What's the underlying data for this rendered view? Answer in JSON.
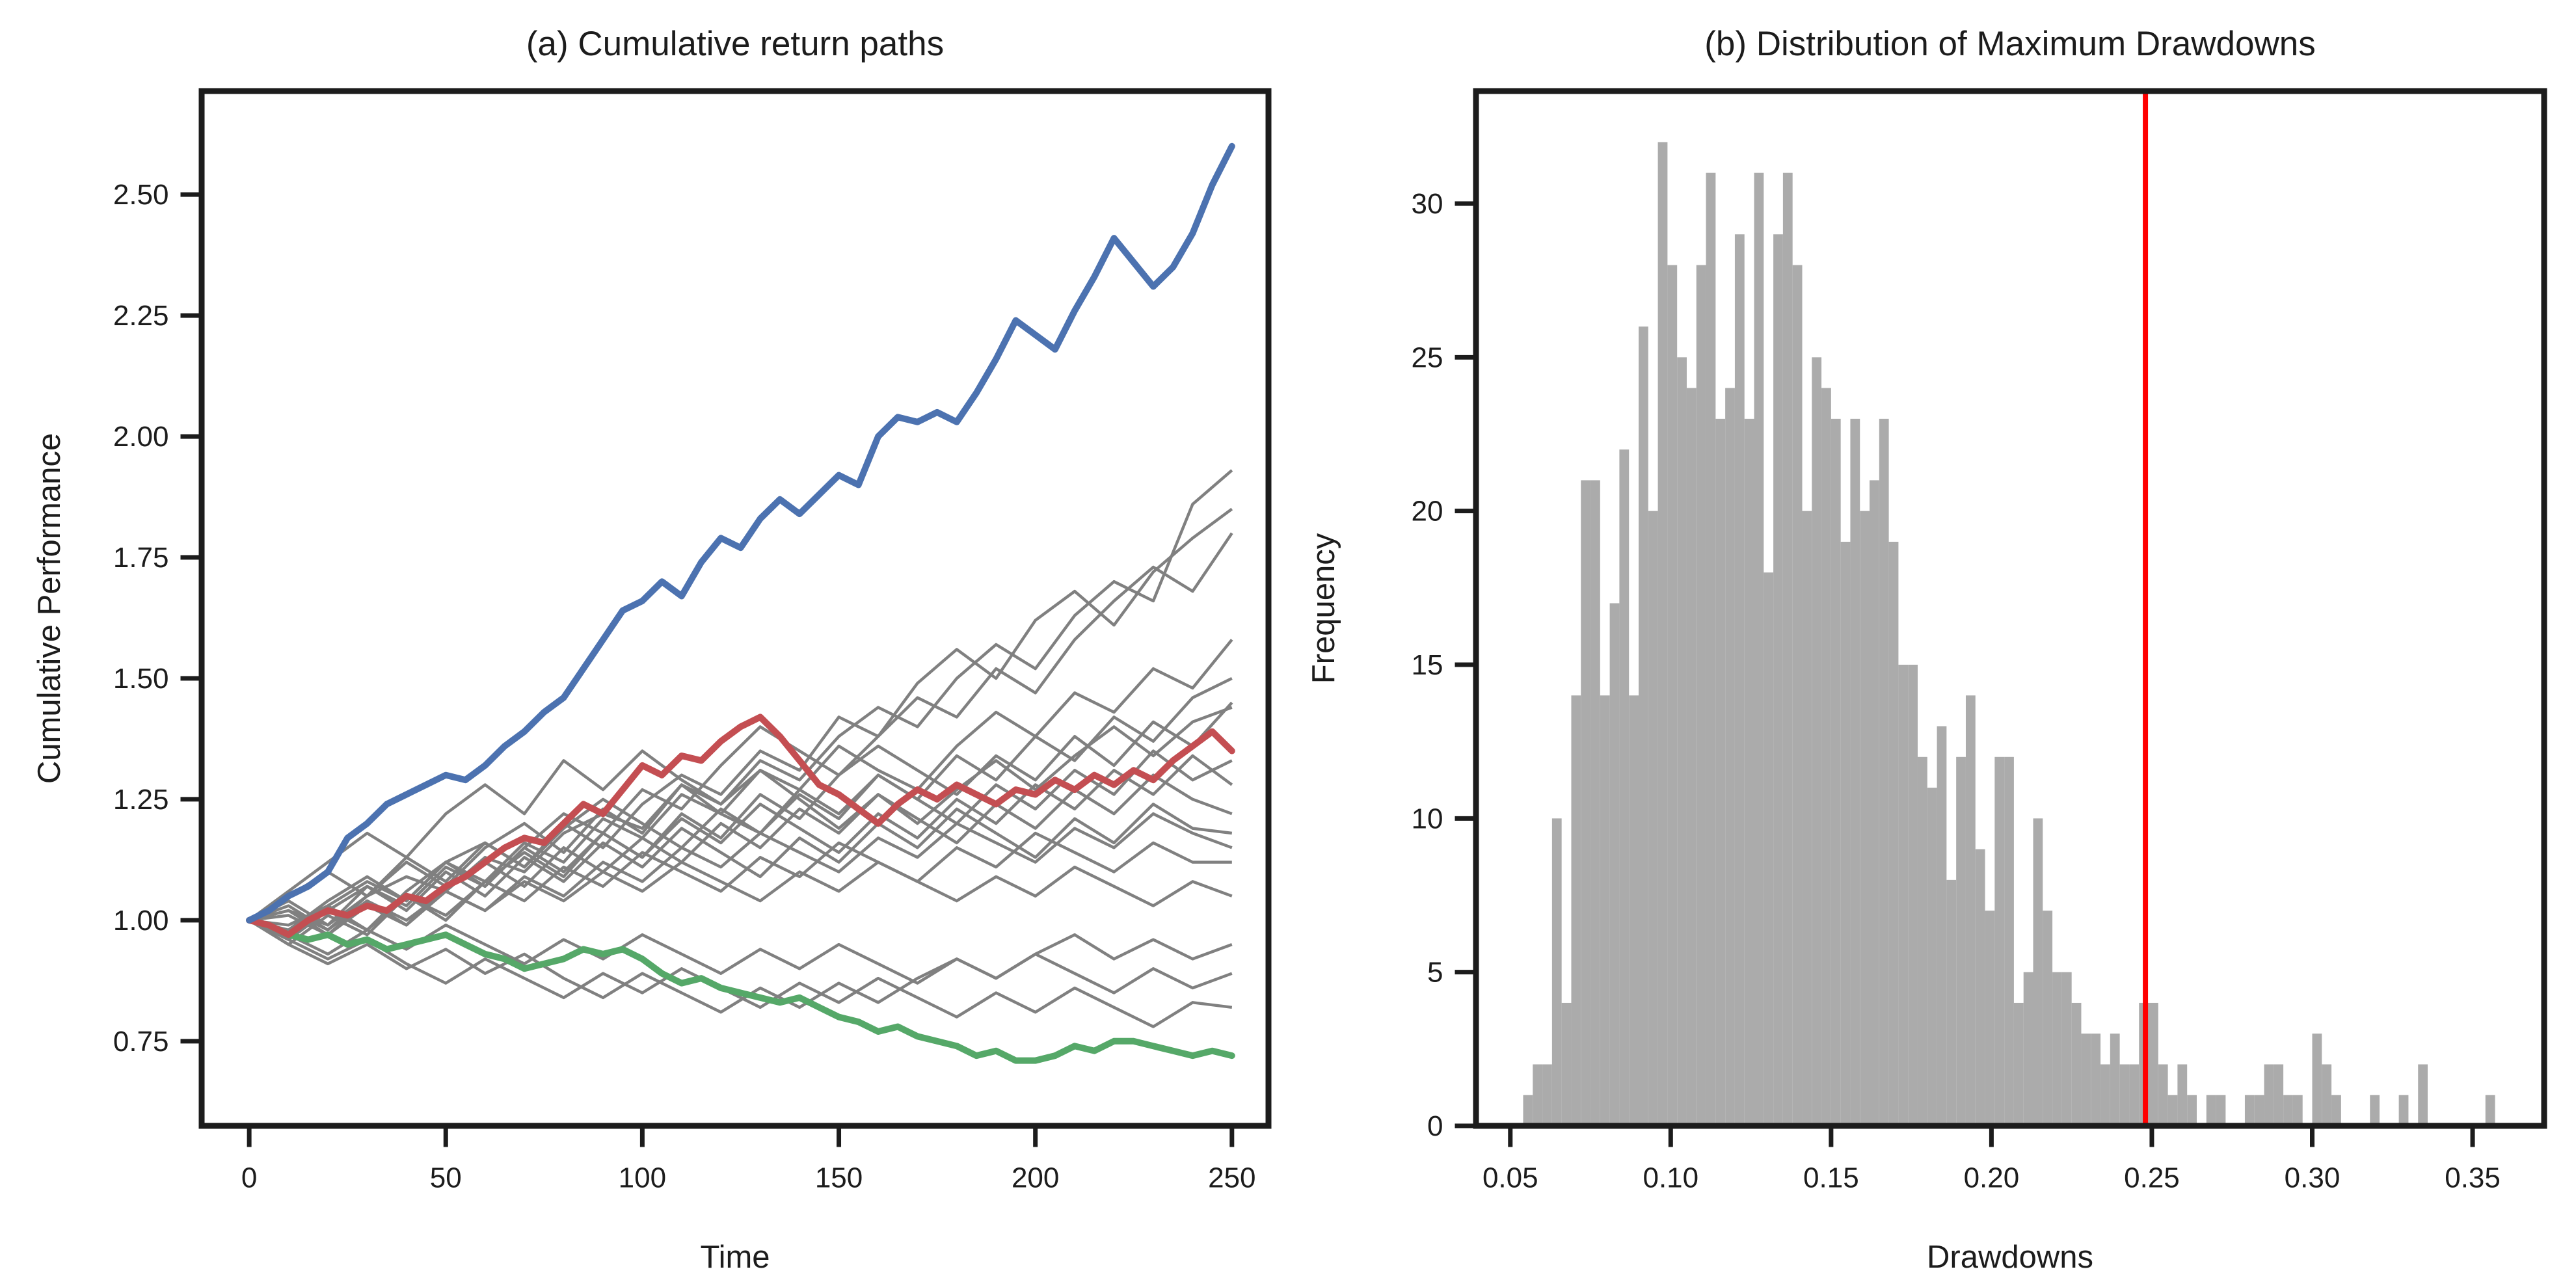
{
  "figure": {
    "background": "#ffffff",
    "axis_color": "#1c1c1c",
    "text_color": "#1c1c1c"
  },
  "chart_data": [
    {
      "type": "line",
      "title": "(a) Cumulative return paths",
      "xlabel": "Time",
      "ylabel": "Cumulative Performance",
      "xlim": [
        -12.1,
        259.3
      ],
      "ylim": [
        0.575,
        2.714
      ],
      "grid": "off",
      "legend": "none",
      "xticks": {
        "values": [
          0,
          50,
          100,
          150,
          200,
          250
        ],
        "labels": [
          "0",
          "50",
          "100",
          "150",
          "200",
          "250"
        ]
      },
      "yticks": {
        "values": [
          0.75,
          1.0,
          1.25,
          1.5,
          1.75,
          2.0,
          2.25,
          2.5
        ],
        "labels": [
          "0.75",
          "1.00",
          "1.25",
          "1.50",
          "1.75",
          "2.00",
          "2.25",
          "2.50"
        ]
      },
      "highlight_series": [
        {
          "name": "best-path",
          "color": "#4C72B0",
          "t0": 0,
          "t_step": 5,
          "values": [
            1.0,
            1.02,
            1.05,
            1.07,
            1.1,
            1.17,
            1.2,
            1.24,
            1.26,
            1.28,
            1.3,
            1.29,
            1.32,
            1.36,
            1.39,
            1.43,
            1.46,
            1.52,
            1.58,
            1.64,
            1.66,
            1.7,
            1.67,
            1.74,
            1.79,
            1.77,
            1.83,
            1.87,
            1.84,
            1.88,
            1.92,
            1.9,
            2.0,
            2.04,
            2.03,
            2.05,
            2.03,
            2.09,
            2.16,
            2.24,
            2.21,
            2.18,
            2.26,
            2.33,
            2.41,
            2.36,
            2.31,
            2.35,
            2.42,
            2.52,
            2.6
          ]
        },
        {
          "name": "median-path",
          "color": "#C44E52",
          "t0": 0,
          "t_step": 5,
          "values": [
            1.0,
            0.99,
            0.97,
            1.0,
            1.02,
            1.01,
            1.03,
            1.02,
            1.05,
            1.04,
            1.07,
            1.09,
            1.12,
            1.15,
            1.17,
            1.16,
            1.2,
            1.24,
            1.22,
            1.27,
            1.32,
            1.3,
            1.34,
            1.33,
            1.37,
            1.4,
            1.42,
            1.38,
            1.33,
            1.28,
            1.26,
            1.23,
            1.2,
            1.24,
            1.27,
            1.25,
            1.28,
            1.26,
            1.24,
            1.27,
            1.26,
            1.29,
            1.27,
            1.3,
            1.28,
            1.31,
            1.29,
            1.33,
            1.36,
            1.39,
            1.35
          ]
        },
        {
          "name": "worst-path",
          "color": "#55A868",
          "t0": 0,
          "t_step": 5,
          "values": [
            1.0,
            0.99,
            0.97,
            0.96,
            0.97,
            0.95,
            0.96,
            0.94,
            0.95,
            0.96,
            0.97,
            0.95,
            0.93,
            0.92,
            0.9,
            0.91,
            0.92,
            0.94,
            0.93,
            0.94,
            0.92,
            0.89,
            0.87,
            0.88,
            0.86,
            0.85,
            0.84,
            0.83,
            0.84,
            0.82,
            0.8,
            0.79,
            0.77,
            0.78,
            0.76,
            0.75,
            0.74,
            0.72,
            0.73,
            0.71,
            0.71,
            0.72,
            0.74,
            0.73,
            0.75,
            0.75,
            0.74,
            0.73,
            0.72,
            0.73,
            0.72
          ]
        }
      ],
      "background_series": {
        "name": "sample-paths",
        "color": "#808080",
        "t0": 0,
        "t_step": 10,
        "paths": [
          [
            1.0,
            1.02,
            0.99,
            1.05,
            1.09,
            1.06,
            1.13,
            1.1,
            1.18,
            1.22,
            1.19,
            1.28,
            1.24,
            1.33,
            1.29,
            1.38,
            1.44,
            1.4,
            1.5,
            1.57,
            1.52,
            1.63,
            1.7,
            1.66,
            1.86,
            1.93
          ],
          [
            1.0,
            0.97,
            1.03,
            1.08,
            1.04,
            1.12,
            1.16,
            1.11,
            1.2,
            1.15,
            1.24,
            1.3,
            1.26,
            1.35,
            1.31,
            1.42,
            1.38,
            1.49,
            1.56,
            1.5,
            1.62,
            1.68,
            1.61,
            1.72,
            1.79,
            1.85
          ],
          [
            1.0,
            1.04,
            0.99,
            1.07,
            1.03,
            1.11,
            1.07,
            1.15,
            1.22,
            1.18,
            1.27,
            1.23,
            1.32,
            1.4,
            1.35,
            1.3,
            1.38,
            1.46,
            1.42,
            1.52,
            1.47,
            1.58,
            1.66,
            1.73,
            1.68,
            1.8
          ],
          [
            1.0,
            0.96,
            1.02,
            0.98,
            1.06,
            1.12,
            1.08,
            1.16,
            1.12,
            1.21,
            1.17,
            1.26,
            1.22,
            1.31,
            1.27,
            1.36,
            1.31,
            1.27,
            1.36,
            1.43,
            1.38,
            1.47,
            1.43,
            1.52,
            1.48,
            1.58
          ],
          [
            1.0,
            1.03,
            0.98,
            1.05,
            1.12,
            1.07,
            1.15,
            1.2,
            1.14,
            1.23,
            1.18,
            1.28,
            1.22,
            1.18,
            1.26,
            1.21,
            1.3,
            1.25,
            1.34,
            1.29,
            1.38,
            1.33,
            1.42,
            1.37,
            1.46,
            1.5
          ],
          [
            1.0,
            0.95,
            1.01,
            0.97,
            1.05,
            1.0,
            1.08,
            1.14,
            1.09,
            1.18,
            1.13,
            1.22,
            1.17,
            1.26,
            1.21,
            1.3,
            1.36,
            1.31,
            1.26,
            1.34,
            1.29,
            1.38,
            1.32,
            1.41,
            1.36,
            1.45
          ],
          [
            1.0,
            1.05,
            1.1,
            1.05,
            1.13,
            1.08,
            1.16,
            1.11,
            1.19,
            1.25,
            1.2,
            1.15,
            1.23,
            1.18,
            1.27,
            1.22,
            1.3,
            1.25,
            1.2,
            1.28,
            1.23,
            1.31,
            1.26,
            1.35,
            1.29,
            1.33
          ],
          [
            1.0,
            0.98,
            1.04,
            1.09,
            1.04,
            1.12,
            1.07,
            1.15,
            1.1,
            1.18,
            1.13,
            1.21,
            1.16,
            1.24,
            1.19,
            1.14,
            1.22,
            1.17,
            1.25,
            1.2,
            1.28,
            1.23,
            1.31,
            1.26,
            1.34,
            1.28
          ],
          [
            1.0,
            1.02,
            0.97,
            1.04,
            0.99,
            1.07,
            1.12,
            1.07,
            1.15,
            1.1,
            1.17,
            1.12,
            1.2,
            1.15,
            1.23,
            1.18,
            1.26,
            1.21,
            1.16,
            1.24,
            1.19,
            1.27,
            1.22,
            1.3,
            1.25,
            1.22
          ],
          [
            1.0,
            0.96,
            1.02,
            1.07,
            1.02,
            1.1,
            1.05,
            1.13,
            1.08,
            1.16,
            1.11,
            1.19,
            1.14,
            1.09,
            1.17,
            1.12,
            1.2,
            1.15,
            1.23,
            1.18,
            1.13,
            1.21,
            1.16,
            1.24,
            1.19,
            1.18
          ],
          [
            1.0,
            1.01,
            0.97,
            1.03,
            0.99,
            1.06,
            1.02,
            1.09,
            1.05,
            1.12,
            1.08,
            1.15,
            1.11,
            1.18,
            1.14,
            1.1,
            1.17,
            1.13,
            1.2,
            1.16,
            1.12,
            1.19,
            1.15,
            1.22,
            1.18,
            1.15
          ],
          [
            1.0,
            0.99,
            1.03,
            0.98,
            1.05,
            1.01,
            1.08,
            1.04,
            1.11,
            1.07,
            1.14,
            1.1,
            1.06,
            1.13,
            1.09,
            1.16,
            1.12,
            1.08,
            1.15,
            1.11,
            1.18,
            1.14,
            1.1,
            1.16,
            1.12,
            1.12
          ],
          [
            1.0,
            1.02,
            0.98,
            1.04,
            1.0,
            1.06,
            1.02,
            1.08,
            1.04,
            1.1,
            1.06,
            1.12,
            1.08,
            1.04,
            1.1,
            1.06,
            1.12,
            1.08,
            1.04,
            1.09,
            1.05,
            1.11,
            1.07,
            1.03,
            1.08,
            1.05
          ],
          [
            1.0,
            0.97,
            0.93,
            0.98,
            0.94,
            0.99,
            0.95,
            0.91,
            0.96,
            0.92,
            0.97,
            0.93,
            0.89,
            0.94,
            0.9,
            0.95,
            0.91,
            0.87,
            0.92,
            0.88,
            0.93,
            0.89,
            0.85,
            0.9,
            0.86,
            0.89
          ],
          [
            1.0,
            0.96,
            0.92,
            0.96,
            0.91,
            0.87,
            0.92,
            0.88,
            0.84,
            0.89,
            0.85,
            0.9,
            0.86,
            0.82,
            0.87,
            0.83,
            0.88,
            0.84,
            0.8,
            0.85,
            0.81,
            0.86,
            0.82,
            0.78,
            0.83,
            0.82
          ],
          [
            1.0,
            1.06,
            1.12,
            1.18,
            1.13,
            1.22,
            1.28,
            1.22,
            1.33,
            1.27,
            1.35,
            1.29,
            1.24,
            1.31,
            1.25,
            1.19,
            1.26,
            1.2,
            1.27,
            1.33,
            1.27,
            1.34,
            1.4,
            1.34,
            1.41,
            1.44
          ],
          [
            1.0,
            0.95,
            0.91,
            0.95,
            0.9,
            0.94,
            0.89,
            0.93,
            0.88,
            0.84,
            0.89,
            0.85,
            0.81,
            0.86,
            0.82,
            0.87,
            0.83,
            0.88,
            0.92,
            0.88,
            0.93,
            0.97,
            0.92,
            0.96,
            0.92,
            0.95
          ]
        ]
      }
    },
    {
      "type": "histogram",
      "title": "(b) Distribution of Maximum Drawdowns",
      "xlabel": "Drawdowns",
      "ylabel": "Frequency",
      "xlim": [
        0.0393,
        0.3723
      ],
      "ylim": [
        0,
        33.66
      ],
      "grid": "off",
      "legend": "none",
      "bar_color": "#ABABAB",
      "xticks": {
        "values": [
          0.05,
          0.1,
          0.15,
          0.2,
          0.25,
          0.3,
          0.35
        ],
        "labels": [
          "0.05",
          "0.10",
          "0.15",
          "0.20",
          "0.25",
          "0.30",
          "0.35"
        ]
      },
      "yticks": {
        "values": [
          0,
          5,
          10,
          15,
          20,
          25,
          30
        ],
        "labels": [
          "0",
          "5",
          "10",
          "15",
          "20",
          "25",
          "30"
        ]
      },
      "histogram": {
        "bin_start": 0.054,
        "bin_width": 0.003,
        "counts": [
          1,
          2,
          2,
          10,
          4,
          14,
          21,
          21,
          14,
          17,
          22,
          14,
          26,
          20,
          32,
          28,
          25,
          24,
          28,
          31,
          23,
          24,
          29,
          23,
          31,
          18,
          29,
          31,
          28,
          20,
          25,
          24,
          23,
          19,
          23,
          20,
          21,
          23,
          19,
          15,
          15,
          12,
          11,
          13,
          8,
          12,
          14,
          9,
          7,
          12,
          12,
          4,
          5,
          10,
          7,
          5,
          5,
          4,
          3,
          3,
          2,
          3,
          2,
          2,
          4,
          4,
          2,
          1,
          2,
          1,
          0,
          1,
          1,
          0,
          0,
          1,
          1,
          2,
          2,
          1,
          1,
          0,
          3,
          2,
          1,
          0,
          0,
          0,
          1,
          0,
          0,
          1,
          0,
          2,
          0,
          0,
          0,
          0,
          0,
          0,
          1,
          0
        ]
      },
      "vline": {
        "name": "drawdown-threshold",
        "x": 0.248,
        "color": "#FF0000"
      }
    }
  ]
}
